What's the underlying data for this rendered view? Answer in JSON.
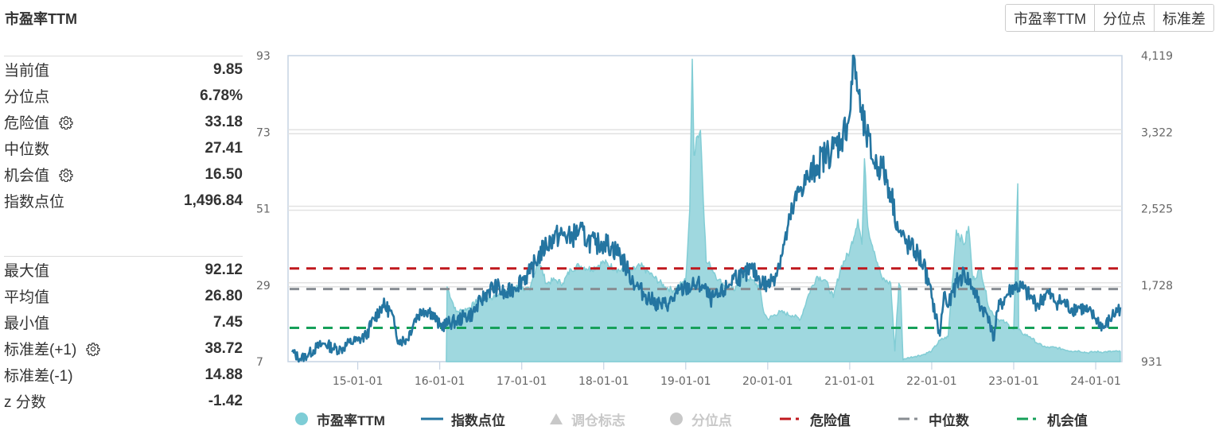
{
  "title": "市盈率TTM",
  "segmented": [
    {
      "label": "市盈率TTM"
    },
    {
      "label": "分位点"
    },
    {
      "label": "标准差"
    }
  ],
  "stats_top": [
    {
      "label": "当前值",
      "value": "9.85",
      "gear": false
    },
    {
      "label": "分位点",
      "value": "6.78%",
      "gear": false
    },
    {
      "label": "危险值",
      "value": "33.18",
      "gear": true
    },
    {
      "label": "中位数",
      "value": "27.41",
      "gear": false
    },
    {
      "label": "机会值",
      "value": "16.50",
      "gear": true
    },
    {
      "label": "指数点位",
      "value": "1,496.84",
      "gear": false
    }
  ],
  "stats_bottom": [
    {
      "label": "最大值",
      "value": "92.12",
      "gear": false
    },
    {
      "label": "平均值",
      "value": "26.80",
      "gear": false
    },
    {
      "label": "最小值",
      "value": "7.45",
      "gear": false
    },
    {
      "label": "标准差(+1)",
      "value": "38.72",
      "gear": true
    },
    {
      "label": "标准差(-1)",
      "value": "14.88",
      "gear": false
    },
    {
      "label": "z 分数",
      "value": "-1.42",
      "gear": false
    }
  ],
  "legend": [
    {
      "label": "市盈率TTM",
      "symbol": "circle",
      "color": "#7ecdd6",
      "active": true
    },
    {
      "label": "指数点位",
      "symbol": "line",
      "color": "#2475a1",
      "active": true
    },
    {
      "label": "调仓标志",
      "symbol": "triangle",
      "color": "#c8c8c8",
      "active": false
    },
    {
      "label": "分位点",
      "symbol": "circle",
      "color": "#c8c8c8",
      "active": false
    },
    {
      "label": "危险值",
      "symbol": "dash",
      "color": "#c0181e",
      "active": true
    },
    {
      "label": "中位数",
      "symbol": "dash",
      "color": "#888d92",
      "active": true
    },
    {
      "label": "机会值",
      "symbol": "dash",
      "color": "#16a05a",
      "active": true
    }
  ],
  "colors": {
    "pe_fill": "#9fd8df",
    "pe_line": "#82cdd5",
    "index_line": "#2475a1",
    "danger": "#c0181e",
    "median": "#888d92",
    "opportunity": "#16a05a",
    "grid": "#e2e2e2",
    "axis": "#c6d3e3"
  },
  "chart_data": {
    "type": "area+line",
    "title": "市盈率TTM",
    "x_ticks": [
      "15-01-01",
      "16-01-01",
      "17-01-01",
      "18-01-01",
      "19-01-01",
      "20-01-01",
      "21-01-01",
      "22-01-01",
      "23-01-01",
      "24-01-01"
    ],
    "x_range": [
      "2014-03",
      "2024-04"
    ],
    "left_axis": {
      "label": "市盈率TTM",
      "ticks": [
        "93",
        "73",
        "51",
        "29",
        "7"
      ],
      "range": [
        7,
        93
      ]
    },
    "right_axis": {
      "label": "指数点位",
      "ticks": [
        "4,119",
        "3,322",
        "2,525",
        "1,728",
        "931"
      ],
      "range": [
        931,
        4119
      ]
    },
    "reference_lines": [
      {
        "name": "危险值",
        "value": 33.18
      },
      {
        "name": "中位数",
        "value": 27.41
      },
      {
        "name": "机会值",
        "value": 16.5
      }
    ],
    "grid": true,
    "legend_position": "bottom",
    "series": [
      {
        "name": "市盈率TTM",
        "type": "area",
        "axis": "left",
        "x": [
          2016.08,
          2016.09,
          2016.2,
          2016.35,
          2016.5,
          2016.65,
          2016.8,
          2016.95,
          2017.1,
          2017.2,
          2017.3,
          2017.4,
          2017.5,
          2017.6,
          2017.7,
          2017.85,
          2018.0,
          2018.15,
          2018.3,
          2018.45,
          2018.6,
          2018.75,
          2018.85,
          2018.95,
          2019.0,
          2019.05,
          2019.08,
          2019.1,
          2019.13,
          2019.18,
          2019.25,
          2019.3,
          2019.35,
          2019.4,
          2019.5,
          2019.6,
          2019.7,
          2019.8,
          2019.9,
          2019.95,
          2020.0,
          2020.15,
          2020.3,
          2020.4,
          2020.5,
          2020.6,
          2020.7,
          2020.8,
          2020.9,
          2021.0,
          2021.1,
          2021.15,
          2021.18,
          2021.22,
          2021.3,
          2021.4,
          2021.5,
          2021.55,
          2021.6,
          2021.62,
          2021.65,
          2021.7,
          2021.8,
          2021.9,
          2022.0,
          2022.1,
          2022.2,
          2022.3,
          2022.4,
          2022.45,
          2022.5,
          2022.6,
          2022.7,
          2022.8,
          2022.9,
          2023.0,
          2023.05,
          2023.06,
          2023.1,
          2023.2,
          2023.3,
          2023.4,
          2023.5,
          2023.6,
          2023.7,
          2023.8,
          2023.9,
          2024.0,
          2024.1,
          2024.2,
          2024.3
        ],
        "values": [
          7,
          28,
          21,
          22,
          25,
          25,
          27,
          28,
          27,
          36,
          29,
          30,
          29,
          33,
          34,
          33,
          35,
          33,
          32,
          34,
          31,
          28,
          27,
          29,
          30,
          50,
          92,
          65,
          70,
          72,
          35,
          34,
          32,
          30,
          28,
          27,
          31,
          30,
          28,
          21,
          19,
          21,
          20,
          19,
          26,
          31,
          30,
          25,
          34,
          38,
          47,
          40,
          64,
          45,
          38,
          30,
          29,
          10,
          29,
          28,
          7.5,
          8,
          8.5,
          9,
          10,
          13,
          14,
          44,
          40,
          45,
          30,
          33,
          22,
          19,
          18,
          16,
          57,
          16,
          15,
          14,
          12,
          11,
          11,
          10.5,
          10,
          10,
          9.5,
          9.8,
          9.7,
          9.85,
          9.85
        ]
      },
      {
        "name": "指数点位",
        "type": "line",
        "axis": "right",
        "x": [
          2014.2,
          2014.3,
          2014.4,
          2014.5,
          2014.6,
          2014.7,
          2014.8,
          2014.9,
          2015.0,
          2015.1,
          2015.2,
          2015.3,
          2015.4,
          2015.45,
          2015.5,
          2015.6,
          2015.7,
          2015.8,
          2015.9,
          2016.0,
          2016.1,
          2016.2,
          2016.3,
          2016.4,
          2016.5,
          2016.6,
          2016.7,
          2016.8,
          2016.9,
          2017.0,
          2017.1,
          2017.2,
          2017.3,
          2017.4,
          2017.5,
          2017.6,
          2017.7,
          2017.8,
          2017.9,
          2018.0,
          2018.1,
          2018.2,
          2018.3,
          2018.4,
          2018.5,
          2018.6,
          2018.7,
          2018.8,
          2018.9,
          2019.0,
          2019.1,
          2019.2,
          2019.3,
          2019.4,
          2019.5,
          2019.6,
          2019.7,
          2019.8,
          2019.9,
          2020.0,
          2020.1,
          2020.2,
          2020.3,
          2020.4,
          2020.5,
          2020.6,
          2020.7,
          2020.8,
          2020.9,
          2021.0,
          2021.05,
          2021.1,
          2021.15,
          2021.2,
          2021.3,
          2021.4,
          2021.5,
          2021.6,
          2021.7,
          2021.8,
          2021.9,
          2022.0,
          2022.1,
          2022.15,
          2022.2,
          2022.3,
          2022.4,
          2022.5,
          2022.6,
          2022.7,
          2022.75,
          2022.8,
          2022.9,
          2023.0,
          2023.1,
          2023.2,
          2023.3,
          2023.4,
          2023.5,
          2023.6,
          2023.7,
          2023.8,
          2023.9,
          2024.0,
          2024.1,
          2024.2,
          2024.3
        ],
        "values": [
          1030,
          960,
          1010,
          1080,
          1120,
          1070,
          1060,
          1130,
          1150,
          1200,
          1380,
          1520,
          1460,
          1300,
          1150,
          1160,
          1380,
          1480,
          1450,
          1300,
          1330,
          1350,
          1400,
          1430,
          1560,
          1680,
          1710,
          1620,
          1700,
          1790,
          1850,
          2020,
          2150,
          2230,
          2250,
          2220,
          2300,
          2200,
          2150,
          2180,
          2120,
          2050,
          1860,
          1720,
          1630,
          1560,
          1520,
          1540,
          1640,
          1700,
          1720,
          1730,
          1580,
          1610,
          1700,
          1830,
          1810,
          1900,
          1790,
          1720,
          1850,
          2150,
          2500,
          2750,
          2850,
          2980,
          3080,
          3150,
          3250,
          3500,
          4119,
          3750,
          3450,
          3300,
          3000,
          2950,
          2700,
          2280,
          2150,
          2080,
          1950,
          1600,
          1200,
          1650,
          1500,
          1750,
          1850,
          1700,
          1500,
          1400,
          1150,
          1460,
          1600,
          1720,
          1700,
          1600,
          1520,
          1650,
          1560,
          1550,
          1480,
          1500,
          1450,
          1380,
          1280,
          1400,
          1497
        ]
      }
    ]
  }
}
